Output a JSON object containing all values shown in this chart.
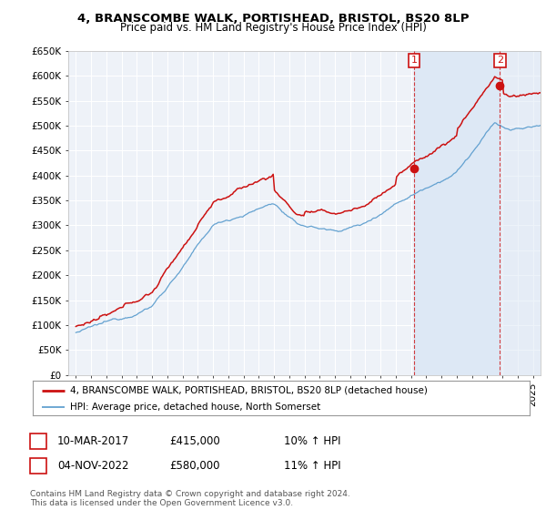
{
  "title": "4, BRANSCOMBE WALK, PORTISHEAD, BRISTOL, BS20 8LP",
  "subtitle": "Price paid vs. HM Land Registry's House Price Index (HPI)",
  "ylim": [
    0,
    650000
  ],
  "yticks": [
    0,
    50000,
    100000,
    150000,
    200000,
    250000,
    300000,
    350000,
    400000,
    450000,
    500000,
    550000,
    600000,
    650000
  ],
  "xlim_start": 1994.5,
  "xlim_end": 2025.5,
  "hpi_color": "#5599cc",
  "price_color": "#cc1111",
  "marker1_x": 2017.19,
  "marker1_y": 415000,
  "marker1_label": "1",
  "marker2_x": 2022.84,
  "marker2_y": 580000,
  "marker2_label": "2",
  "annotation1_date": "10-MAR-2017",
  "annotation1_price": "£415,000",
  "annotation1_hpi": "10% ↑ HPI",
  "annotation2_date": "04-NOV-2022",
  "annotation2_price": "£580,000",
  "annotation2_hpi": "11% ↑ HPI",
  "legend_line1": "4, BRANSCOMBE WALK, PORTISHEAD, BRISTOL, BS20 8LP (detached house)",
  "legend_line2": "HPI: Average price, detached house, North Somerset",
  "footer": "Contains HM Land Registry data © Crown copyright and database right 2024.\nThis data is licensed under the Open Government Licence v3.0.",
  "background_color": "#ffffff",
  "plot_bg_color": "#eef2f8",
  "grid_color": "#ffffff",
  "highlight_color": "#dde8f5"
}
